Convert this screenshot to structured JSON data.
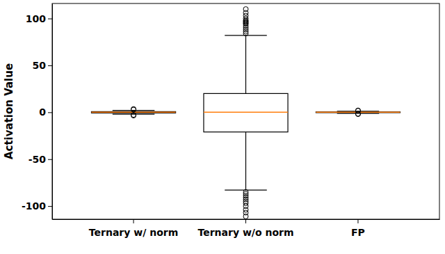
{
  "chart_data": {
    "type": "box",
    "y_label": "Activation Value",
    "categories": [
      "Ternary w/ norm",
      "Ternary w/o norm",
      "FP"
    ],
    "boxes": [
      {
        "whislo": -2.0,
        "q1": -0.7,
        "median": 0,
        "q3": 0.7,
        "whishi": 2.0,
        "fliers": [
          2.8,
          3.5,
          -2.8,
          -3.5
        ]
      },
      {
        "whislo": -83,
        "q1": -21,
        "median": 0,
        "q3": 20,
        "whishi": 82,
        "fliers": [
          84,
          86,
          88,
          90,
          92,
          94,
          95,
          96,
          97,
          98,
          100,
          103,
          106,
          110,
          -85,
          -87,
          -89,
          -91,
          -93,
          -95,
          -97,
          -100,
          -104,
          -107,
          -111
        ]
      },
      {
        "whislo": -1.2,
        "q1": -0.4,
        "median": 0,
        "q3": 0.4,
        "whishi": 1.2,
        "fliers": [
          1.6,
          2.0,
          -1.6,
          -2.0
        ]
      }
    ],
    "color": "#ff7f0e",
    "ylim": [
      -114,
      116
    ],
    "yticks": [
      -100,
      -50,
      0,
      50,
      100
    ],
    "grid": false
  }
}
